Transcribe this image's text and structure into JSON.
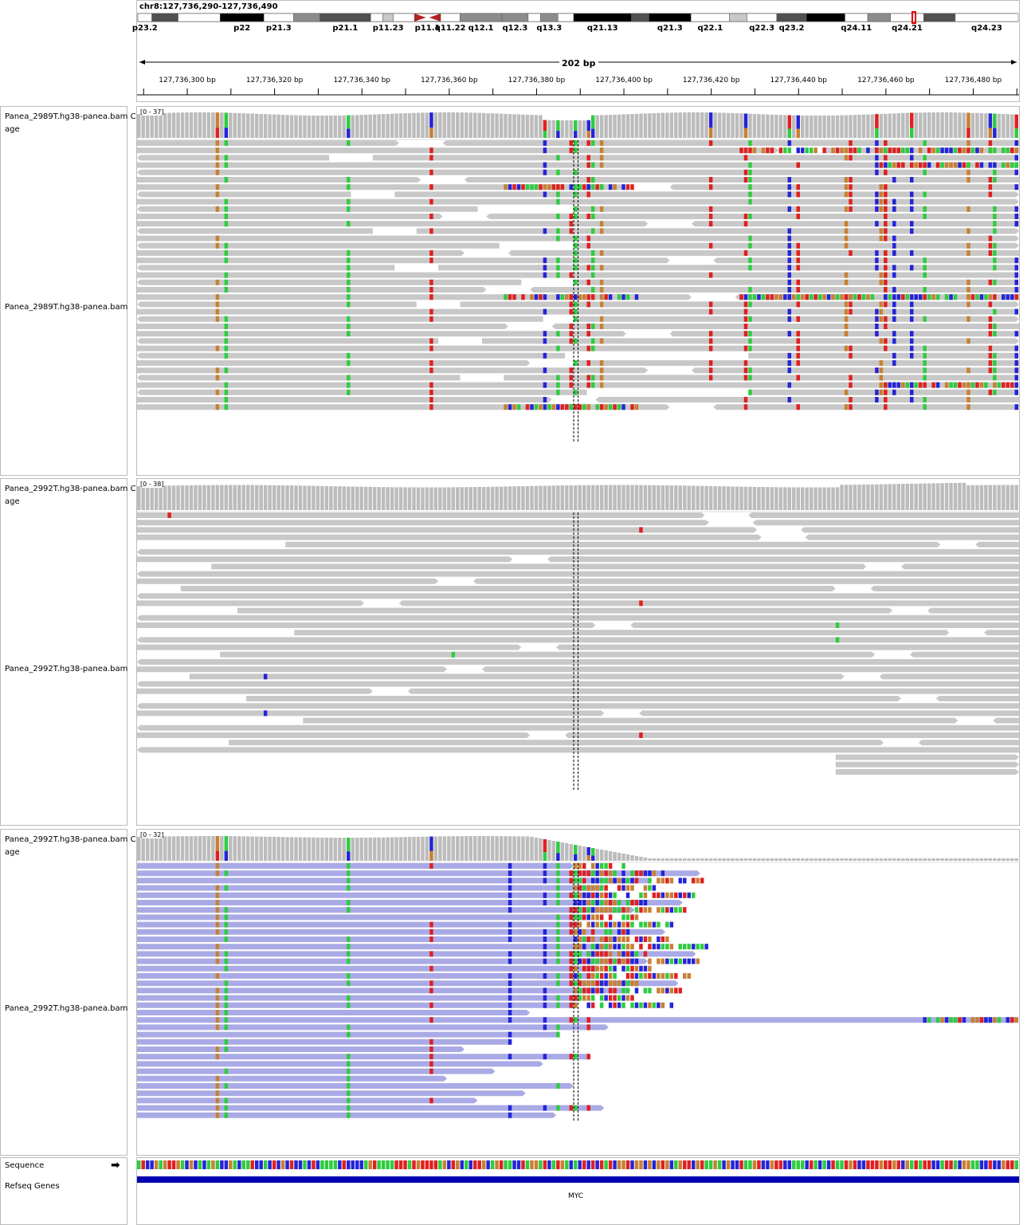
{
  "locus": "chr8:127,736,290-127,736,490",
  "span_label": "202 bp",
  "bands": [
    {
      "label": "p23.2",
      "stain": "gneg"
    },
    {
      "label": "",
      "stain": "gpos75"
    },
    {
      "label": "",
      "stain": "gneg"
    },
    {
      "label": "p22",
      "stain": "gpos100"
    },
    {
      "label": "p21.3",
      "stain": "gneg"
    },
    {
      "label": "",
      "stain": "gpos50"
    },
    {
      "label": "p21.1",
      "stain": "gpos75"
    },
    {
      "label": "",
      "stain": "gneg"
    },
    {
      "label": "p11.23",
      "stain": "gpos25"
    },
    {
      "label": "",
      "stain": "gneg"
    },
    {
      "label": "p11.1",
      "stain": "acen"
    },
    {
      "label": "q11.22",
      "stain": "gneg"
    },
    {
      "label": "q12.1",
      "stain": "gpos50"
    },
    {
      "label": "q12.3",
      "stain": "gpos50"
    },
    {
      "label": "",
      "stain": "gneg"
    },
    {
      "label": "q13.3",
      "stain": "gpos50"
    },
    {
      "label": "",
      "stain": "gneg"
    },
    {
      "label": "q21.13",
      "stain": "gpos100"
    },
    {
      "label": "",
      "stain": "gpos75"
    },
    {
      "label": "q21.3",
      "stain": "gpos100"
    },
    {
      "label": "q22.1",
      "stain": "gneg"
    },
    {
      "label": "",
      "stain": "gpos25"
    },
    {
      "label": "q22.3",
      "stain": "gneg"
    },
    {
      "label": "q23.2",
      "stain": "gpos75"
    },
    {
      "label": "",
      "stain": "gpos100"
    },
    {
      "label": "q24.11",
      "stain": "gneg"
    },
    {
      "label": "",
      "stain": "gpos50"
    },
    {
      "label": "q24.21",
      "stain": "gneg"
    },
    {
      "label": "",
      "stain": "gpos75"
    },
    {
      "label": "q24.23",
      "stain": "gneg"
    }
  ],
  "ruler_ticks": [
    "127,736,300 bp",
    "127,736,320 bp",
    "127,736,340 bp",
    "127,736,360 bp",
    "127,736,380 bp",
    "127,736,400 bp",
    "127,736,420 bp",
    "127,736,440 bp",
    "127,736,460 bp",
    "127,736,480 bp"
  ],
  "tracks": [
    {
      "name": "Panea_2989T.hg38-panea.bam Coverage",
      "coverage_label_1": "Panea_2989T.hg38-panea.bam Co",
      "coverage_label_2": "age",
      "alignment_label": "Panea_2989T.hg38-panea.bam",
      "range": "[0 - 37]",
      "read_color": "#c8c8c8"
    },
    {
      "name": "Panea_2992T.hg38-panea.bam Coverage",
      "coverage_label_1": "Panea_2992T.hg38-panea.bam Co",
      "coverage_label_2": "age",
      "alignment_label": "Panea_2992T.hg38-panea.bam",
      "range": "[0 - 38]",
      "read_color": "#c8c8c8"
    },
    {
      "name": "Panea_2992T.hg38-panea.bam Coverage",
      "coverage_label_1": "Panea_2992T.hg38-panea.bam Co",
      "coverage_label_2": "age",
      "alignment_label": "Panea_2992T.hg38-panea.bam",
      "range": "[0 - 32]",
      "read_color": "#aaaae6"
    }
  ],
  "sequence_label": "Sequence",
  "refseq_label": "Refseq Genes",
  "gene_name": "MYC",
  "colors": {
    "A": "#2ecc40",
    "C": "#2424d8",
    "G": "#c88033",
    "T": "#e02020",
    "read_gray": "#c8c8c8",
    "read_purple": "#aaaae6",
    "gene": "#0000b2"
  }
}
